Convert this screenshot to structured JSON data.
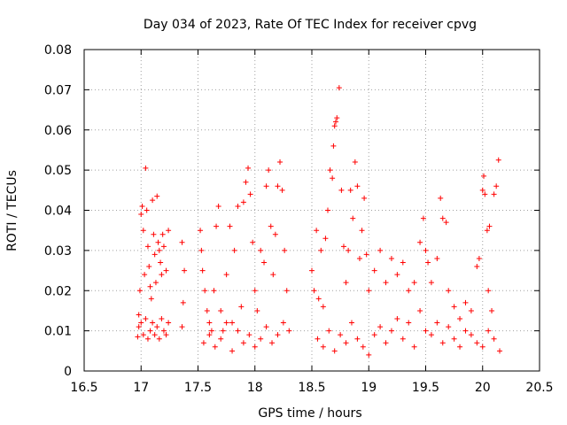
{
  "chart_data": {
    "type": "scatter",
    "title": "Day 034 of 2023, Rate Of TEC Index for receiver cpvg",
    "xlabel": "GPS time / hours",
    "ylabel": "ROTI / TECUs",
    "xlim": [
      16.5,
      20.5
    ],
    "ylim": [
      0,
      0.08
    ],
    "x_ticks": [
      16.5,
      17,
      17.5,
      18,
      18.5,
      19,
      19.5,
      20,
      20.5
    ],
    "x_tick_labels": [
      "16.5",
      "17",
      "17.5",
      "18",
      "18.5",
      "19",
      "19.5",
      "20",
      "20.5"
    ],
    "y_ticks": [
      0,
      0.01,
      0.02,
      0.03,
      0.04,
      0.05,
      0.06,
      0.07,
      0.08
    ],
    "y_tick_labels": [
      "0",
      "0.01",
      "0.02",
      "0.03",
      "0.04",
      "0.05",
      "0.06",
      "0.07",
      "0.08"
    ],
    "grid": true,
    "marker": "+",
    "color": "#ff0000",
    "series": [
      {
        "name": "ROTI",
        "points": [
          [
            16.97,
            0.0085
          ],
          [
            16.98,
            0.014
          ],
          [
            16.99,
            0.02
          ],
          [
            17.0,
            0.039
          ],
          [
            17.01,
            0.041
          ],
          [
            17.02,
            0.035
          ],
          [
            17.03,
            0.024
          ],
          [
            17.04,
            0.0505
          ],
          [
            17.05,
            0.04
          ],
          [
            17.06,
            0.031
          ],
          [
            17.07,
            0.026
          ],
          [
            17.08,
            0.021
          ],
          [
            17.09,
            0.018
          ],
          [
            17.1,
            0.0425
          ],
          [
            17.11,
            0.034
          ],
          [
            17.12,
            0.029
          ],
          [
            17.13,
            0.022
          ],
          [
            17.14,
            0.0435
          ],
          [
            17.15,
            0.032
          ],
          [
            17.16,
            0.03
          ],
          [
            17.17,
            0.027
          ],
          [
            17.18,
            0.024
          ],
          [
            17.19,
            0.034
          ],
          [
            17.2,
            0.031
          ],
          [
            17.22,
            0.025
          ],
          [
            17.24,
            0.035
          ],
          [
            16.98,
            0.011
          ],
          [
            17.0,
            0.012
          ],
          [
            17.02,
            0.009
          ],
          [
            17.04,
            0.013
          ],
          [
            17.06,
            0.008
          ],
          [
            17.08,
            0.01
          ],
          [
            17.1,
            0.012
          ],
          [
            17.12,
            0.009
          ],
          [
            17.14,
            0.011
          ],
          [
            17.16,
            0.008
          ],
          [
            17.18,
            0.013
          ],
          [
            17.2,
            0.01
          ],
          [
            17.22,
            0.009
          ],
          [
            17.24,
            0.012
          ],
          [
            17.36,
            0.032
          ],
          [
            17.38,
            0.025
          ],
          [
            17.37,
            0.017
          ],
          [
            17.36,
            0.011
          ],
          [
            17.52,
            0.035
          ],
          [
            17.53,
            0.03
          ],
          [
            17.54,
            0.025
          ],
          [
            17.56,
            0.02
          ],
          [
            17.58,
            0.015
          ],
          [
            17.6,
            0.012
          ],
          [
            17.62,
            0.01
          ],
          [
            17.64,
            0.02
          ],
          [
            17.66,
            0.036
          ],
          [
            17.68,
            0.041
          ],
          [
            17.7,
            0.015
          ],
          [
            17.72,
            0.01
          ],
          [
            17.75,
            0.024
          ],
          [
            17.78,
            0.036
          ],
          [
            17.8,
            0.012
          ],
          [
            17.82,
            0.03
          ],
          [
            17.85,
            0.041
          ],
          [
            17.88,
            0.016
          ],
          [
            17.9,
            0.042
          ],
          [
            17.92,
            0.047
          ],
          [
            17.94,
            0.0505
          ],
          [
            17.96,
            0.044
          ],
          [
            17.98,
            0.032
          ],
          [
            18.0,
            0.02
          ],
          [
            18.02,
            0.015
          ],
          [
            18.05,
            0.03
          ],
          [
            18.08,
            0.027
          ],
          [
            18.1,
            0.046
          ],
          [
            18.12,
            0.05
          ],
          [
            18.14,
            0.036
          ],
          [
            18.16,
            0.024
          ],
          [
            18.18,
            0.034
          ],
          [
            18.2,
            0.046
          ],
          [
            18.22,
            0.052
          ],
          [
            18.24,
            0.045
          ],
          [
            18.26,
            0.03
          ],
          [
            18.28,
            0.02
          ],
          [
            17.55,
            0.007
          ],
          [
            17.6,
            0.009
          ],
          [
            17.65,
            0.006
          ],
          [
            17.7,
            0.008
          ],
          [
            17.75,
            0.012
          ],
          [
            17.8,
            0.005
          ],
          [
            17.85,
            0.01
          ],
          [
            17.9,
            0.007
          ],
          [
            17.95,
            0.009
          ],
          [
            18.0,
            0.006
          ],
          [
            18.05,
            0.008
          ],
          [
            18.1,
            0.011
          ],
          [
            18.15,
            0.007
          ],
          [
            18.2,
            0.009
          ],
          [
            18.25,
            0.012
          ],
          [
            18.3,
            0.01
          ],
          [
            18.5,
            0.025
          ],
          [
            18.52,
            0.02
          ],
          [
            18.54,
            0.035
          ],
          [
            18.56,
            0.018
          ],
          [
            18.58,
            0.03
          ],
          [
            18.6,
            0.016
          ],
          [
            18.62,
            0.033
          ],
          [
            18.64,
            0.04
          ],
          [
            18.66,
            0.05
          ],
          [
            18.68,
            0.048
          ],
          [
            18.69,
            0.056
          ],
          [
            18.7,
            0.061
          ],
          [
            18.71,
            0.062
          ],
          [
            18.72,
            0.063
          ],
          [
            18.74,
            0.0705
          ],
          [
            18.76,
            0.045
          ],
          [
            18.78,
            0.031
          ],
          [
            18.8,
            0.022
          ],
          [
            18.82,
            0.03
          ],
          [
            18.84,
            0.045
          ],
          [
            18.86,
            0.038
          ],
          [
            18.88,
            0.052
          ],
          [
            18.9,
            0.046
          ],
          [
            18.92,
            0.028
          ],
          [
            18.94,
            0.035
          ],
          [
            18.96,
            0.043
          ],
          [
            18.98,
            0.029
          ],
          [
            19.0,
            0.02
          ],
          [
            19.05,
            0.025
          ],
          [
            19.1,
            0.03
          ],
          [
            19.15,
            0.022
          ],
          [
            19.2,
            0.028
          ],
          [
            19.25,
            0.024
          ],
          [
            19.3,
            0.027
          ],
          [
            19.35,
            0.02
          ],
          [
            19.4,
            0.022
          ],
          [
            19.45,
            0.032
          ],
          [
            19.48,
            0.038
          ],
          [
            19.5,
            0.03
          ],
          [
            19.52,
            0.027
          ],
          [
            19.55,
            0.022
          ],
          [
            19.6,
            0.028
          ],
          [
            19.63,
            0.043
          ],
          [
            19.65,
            0.038
          ],
          [
            19.68,
            0.037
          ],
          [
            19.7,
            0.02
          ],
          [
            19.75,
            0.016
          ],
          [
            19.8,
            0.013
          ],
          [
            19.85,
            0.017
          ],
          [
            19.9,
            0.015
          ],
          [
            19.95,
            0.026
          ],
          [
            19.97,
            0.028
          ],
          [
            20.0,
            0.045
          ],
          [
            20.01,
            0.0485
          ],
          [
            20.02,
            0.044
          ],
          [
            20.04,
            0.035
          ],
          [
            20.05,
            0.02
          ],
          [
            20.06,
            0.036
          ],
          [
            20.08,
            0.015
          ],
          [
            20.1,
            0.044
          ],
          [
            20.12,
            0.046
          ],
          [
            20.14,
            0.0525
          ],
          [
            18.55,
            0.008
          ],
          [
            18.6,
            0.006
          ],
          [
            18.65,
            0.01
          ],
          [
            18.7,
            0.005
          ],
          [
            18.75,
            0.009
          ],
          [
            18.8,
            0.007
          ],
          [
            18.85,
            0.012
          ],
          [
            18.9,
            0.008
          ],
          [
            18.95,
            0.006
          ],
          [
            19.0,
            0.004
          ],
          [
            19.05,
            0.009
          ],
          [
            19.1,
            0.011
          ],
          [
            19.15,
            0.007
          ],
          [
            19.2,
            0.01
          ],
          [
            19.25,
            0.013
          ],
          [
            19.3,
            0.008
          ],
          [
            19.35,
            0.012
          ],
          [
            19.4,
            0.006
          ],
          [
            19.45,
            0.015
          ],
          [
            19.5,
            0.01
          ],
          [
            19.55,
            0.009
          ],
          [
            19.6,
            0.012
          ],
          [
            19.65,
            0.007
          ],
          [
            19.7,
            0.011
          ],
          [
            19.75,
            0.008
          ],
          [
            19.8,
            0.006
          ],
          [
            19.85,
            0.01
          ],
          [
            19.9,
            0.009
          ],
          [
            19.95,
            0.007
          ],
          [
            20.0,
            0.006
          ],
          [
            20.05,
            0.01
          ],
          [
            20.1,
            0.008
          ],
          [
            20.15,
            0.005
          ]
        ]
      }
    ]
  }
}
